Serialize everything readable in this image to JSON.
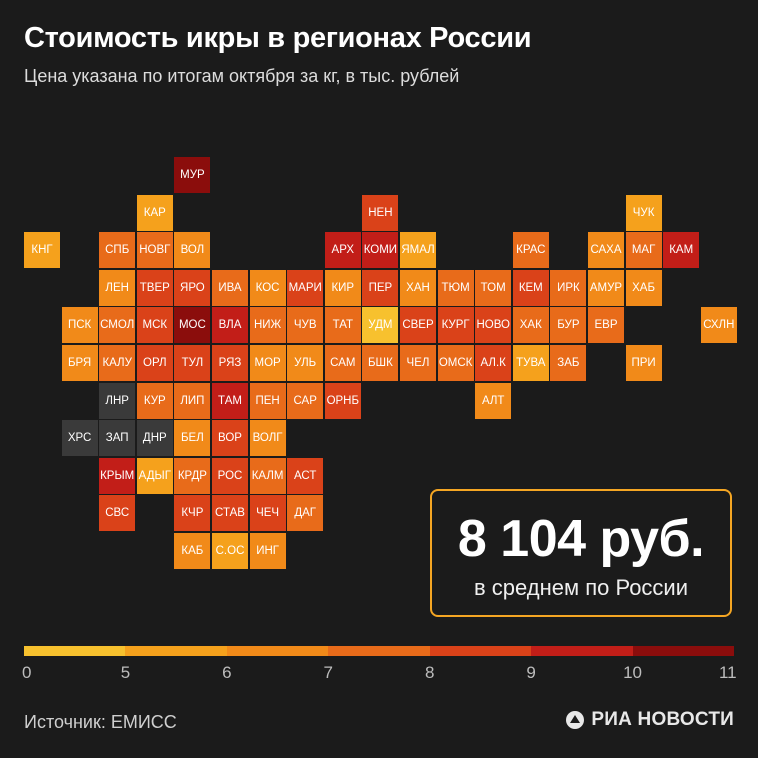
{
  "title": "Стоимость икры в регионах России",
  "subtitle": "Цена указана по итогам октября за кг, в тыс. рублей",
  "average": {
    "value": "8 104 руб.",
    "label": "в среднем по России"
  },
  "legend": {
    "ticks": [
      "0",
      "5",
      "6",
      "7",
      "8",
      "9",
      "10",
      "11"
    ],
    "colors": [
      "#f7c12e",
      "#f5a11c",
      "#f18a19",
      "#e86b1a",
      "#da4219",
      "#c21e18",
      "#8b0d0c"
    ]
  },
  "source": "Источник: ЕМИСС",
  "logo": {
    "text": "РИА НОВОСТИ",
    "icon": "ria-logo-icon"
  },
  "nodata_color": "#3a3a3a",
  "chart_data": {
    "type": "tile-map",
    "value_unit": "тыс. рублей за кг",
    "regions": [
      {
        "label": "МУР",
        "col": 4,
        "row": 0,
        "value": 10.5
      },
      {
        "label": "КАР",
        "col": 3,
        "row": 1,
        "value": 5.5
      },
      {
        "label": "НЕН",
        "col": 9,
        "row": 1,
        "value": 8.5
      },
      {
        "label": "ЧУК",
        "col": 16,
        "row": 1,
        "value": 5.5
      },
      {
        "label": "КНГ",
        "col": 0,
        "row": 2,
        "value": 5.5
      },
      {
        "label": "СПБ",
        "col": 2,
        "row": 2,
        "value": 7.5
      },
      {
        "label": "НОВГ",
        "col": 3,
        "row": 2,
        "value": 7.5
      },
      {
        "label": "ВОЛ",
        "col": 4,
        "row": 2,
        "value": 6.5
      },
      {
        "label": "АРХ",
        "col": 8,
        "row": 2,
        "value": 9.5
      },
      {
        "label": "КОМИ",
        "col": 9,
        "row": 2,
        "value": 9
      },
      {
        "label": "ЯМАЛ",
        "col": 10,
        "row": 2,
        "value": 5.5
      },
      {
        "label": "КРАС",
        "col": 13,
        "row": 2,
        "value": 7.5
      },
      {
        "label": "САХА",
        "col": 15,
        "row": 2,
        "value": 6.5
      },
      {
        "label": "МАГ",
        "col": 16,
        "row": 2,
        "value": 7.5
      },
      {
        "label": "КАМ",
        "col": 17,
        "row": 2,
        "value": 9.5
      },
      {
        "label": "ЛЕН",
        "col": 2,
        "row": 3,
        "value": 6.5
      },
      {
        "label": "ТВЕР",
        "col": 3,
        "row": 3,
        "value": 8.5
      },
      {
        "label": "ЯРО",
        "col": 4,
        "row": 3,
        "value": 8.5
      },
      {
        "label": "ИВА",
        "col": 5,
        "row": 3,
        "value": 7.5
      },
      {
        "label": "КОС",
        "col": 6,
        "row": 3,
        "value": 6.5
      },
      {
        "label": "МАРИ",
        "col": 7,
        "row": 3,
        "value": 8.5
      },
      {
        "label": "КИР",
        "col": 8,
        "row": 3,
        "value": 6.5
      },
      {
        "label": "ПЕР",
        "col": 9,
        "row": 3,
        "value": 8.5
      },
      {
        "label": "ХАН",
        "col": 10,
        "row": 3,
        "value": 6.5
      },
      {
        "label": "ТЮМ",
        "col": 11,
        "row": 3,
        "value": 7
      },
      {
        "label": "ТОМ",
        "col": 12,
        "row": 3,
        "value": 7.5
      },
      {
        "label": "КЕМ",
        "col": 13,
        "row": 3,
        "value": 8
      },
      {
        "label": "ИРК",
        "col": 14,
        "row": 3,
        "value": 7.5
      },
      {
        "label": "АМУР",
        "col": 15,
        "row": 3,
        "value": 6.5
      },
      {
        "label": "ХАБ",
        "col": 16,
        "row": 3,
        "value": 6.5
      },
      {
        "label": "ПСК",
        "col": 1,
        "row": 4,
        "value": 6.5
      },
      {
        "label": "СМОЛ",
        "col": 2,
        "row": 4,
        "value": 7.5
      },
      {
        "label": "МСК",
        "col": 3,
        "row": 4,
        "value": 8.5
      },
      {
        "label": "МОС",
        "col": 4,
        "row": 4,
        "value": 10.5
      },
      {
        "label": "ВЛА",
        "col": 5,
        "row": 4,
        "value": 9
      },
      {
        "label": "НИЖ",
        "col": 6,
        "row": 4,
        "value": 7.5
      },
      {
        "label": "ЧУВ",
        "col": 7,
        "row": 4,
        "value": 7.5
      },
      {
        "label": "ТАТ",
        "col": 8,
        "row": 4,
        "value": 7.5
      },
      {
        "label": "УДМ",
        "col": 9,
        "row": 4,
        "value": 4.5
      },
      {
        "label": "СВЕР",
        "col": 10,
        "row": 4,
        "value": 8.5
      },
      {
        "label": "КУРГ",
        "col": 11,
        "row": 4,
        "value": 8.5
      },
      {
        "label": "НОВО",
        "col": 12,
        "row": 4,
        "value": 8.5
      },
      {
        "label": "ХАК",
        "col": 13,
        "row": 4,
        "value": 7.5
      },
      {
        "label": "БУР",
        "col": 14,
        "row": 4,
        "value": 7.5
      },
      {
        "label": "ЕВР",
        "col": 15,
        "row": 4,
        "value": 7.5
      },
      {
        "label": "СХЛН",
        "col": 18,
        "row": 4,
        "value": 6.5
      },
      {
        "label": "БРЯ",
        "col": 1,
        "row": 5,
        "value": 6.5
      },
      {
        "label": "КАЛУ",
        "col": 2,
        "row": 5,
        "value": 7.5
      },
      {
        "label": "ОРЛ",
        "col": 3,
        "row": 5,
        "value": 8.5
      },
      {
        "label": "ТУЛ",
        "col": 4,
        "row": 5,
        "value": 8.5
      },
      {
        "label": "РЯЗ",
        "col": 5,
        "row": 5,
        "value": 8.5
      },
      {
        "label": "МОР",
        "col": 6,
        "row": 5,
        "value": 6.5
      },
      {
        "label": "УЛЬ",
        "col": 7,
        "row": 5,
        "value": 6.5
      },
      {
        "label": "САМ",
        "col": 8,
        "row": 5,
        "value": 7.5
      },
      {
        "label": "БШК",
        "col": 9,
        "row": 5,
        "value": 7.5
      },
      {
        "label": "ЧЕЛ",
        "col": 10,
        "row": 5,
        "value": 7.5
      },
      {
        "label": "ОМСК",
        "col": 11,
        "row": 5,
        "value": 7.5
      },
      {
        "label": "АЛ.К",
        "col": 12,
        "row": 5,
        "value": 8.5
      },
      {
        "label": "ТУВА",
        "col": 13,
        "row": 5,
        "value": 5.5
      },
      {
        "label": "ЗАБ",
        "col": 14,
        "row": 5,
        "value": 7.5
      },
      {
        "label": "ПРИ",
        "col": 16,
        "row": 5,
        "value": 6.5
      },
      {
        "label": "ЛНР",
        "col": 2,
        "row": 6,
        "value": null
      },
      {
        "label": "КУР",
        "col": 3,
        "row": 6,
        "value": 7.5
      },
      {
        "label": "ЛИП",
        "col": 4,
        "row": 6,
        "value": 7.5
      },
      {
        "label": "ТАМ",
        "col": 5,
        "row": 6,
        "value": 9.5
      },
      {
        "label": "ПЕН",
        "col": 6,
        "row": 6,
        "value": 7.5
      },
      {
        "label": "САР",
        "col": 7,
        "row": 6,
        "value": 7.5
      },
      {
        "label": "ОРНБ",
        "col": 8,
        "row": 6,
        "value": 8.5
      },
      {
        "label": "АЛТ",
        "col": 12,
        "row": 6,
        "value": 6.5
      },
      {
        "label": "ХРС",
        "col": 1,
        "row": 7,
        "value": null
      },
      {
        "label": "ЗАП",
        "col": 2,
        "row": 7,
        "value": null
      },
      {
        "label": "ДНР",
        "col": 3,
        "row": 7,
        "value": null
      },
      {
        "label": "БЕЛ",
        "col": 4,
        "row": 7,
        "value": 6.5
      },
      {
        "label": "ВОР",
        "col": 5,
        "row": 7,
        "value": 8.5
      },
      {
        "label": "ВОЛГ",
        "col": 6,
        "row": 7,
        "value": 6.5
      },
      {
        "label": "КРЫМ",
        "col": 2,
        "row": 8,
        "value": 9.5
      },
      {
        "label": "АДЫГ",
        "col": 3,
        "row": 8,
        "value": 5.5
      },
      {
        "label": "КРДР",
        "col": 4,
        "row": 8,
        "value": 7.5
      },
      {
        "label": "РОС",
        "col": 5,
        "row": 8,
        "value": 8.5
      },
      {
        "label": "КАЛМ",
        "col": 6,
        "row": 8,
        "value": 7.5
      },
      {
        "label": "АСТ",
        "col": 7,
        "row": 8,
        "value": 8.5
      },
      {
        "label": "СВС",
        "col": 2,
        "row": 9,
        "value": 8.5
      },
      {
        "label": "КЧР",
        "col": 4,
        "row": 9,
        "value": 8.5
      },
      {
        "label": "СТАВ",
        "col": 5,
        "row": 9,
        "value": 8.5
      },
      {
        "label": "ЧЕЧ",
        "col": 6,
        "row": 9,
        "value": 8.5
      },
      {
        "label": "ДАГ",
        "col": 7,
        "row": 9,
        "value": 7.5
      },
      {
        "label": "КАБ",
        "col": 4,
        "row": 10,
        "value": 6.5
      },
      {
        "label": "С.ОС",
        "col": 5,
        "row": 10,
        "value": 5.5
      },
      {
        "label": "ИНГ",
        "col": 6,
        "row": 10,
        "value": 6.5
      }
    ]
  }
}
